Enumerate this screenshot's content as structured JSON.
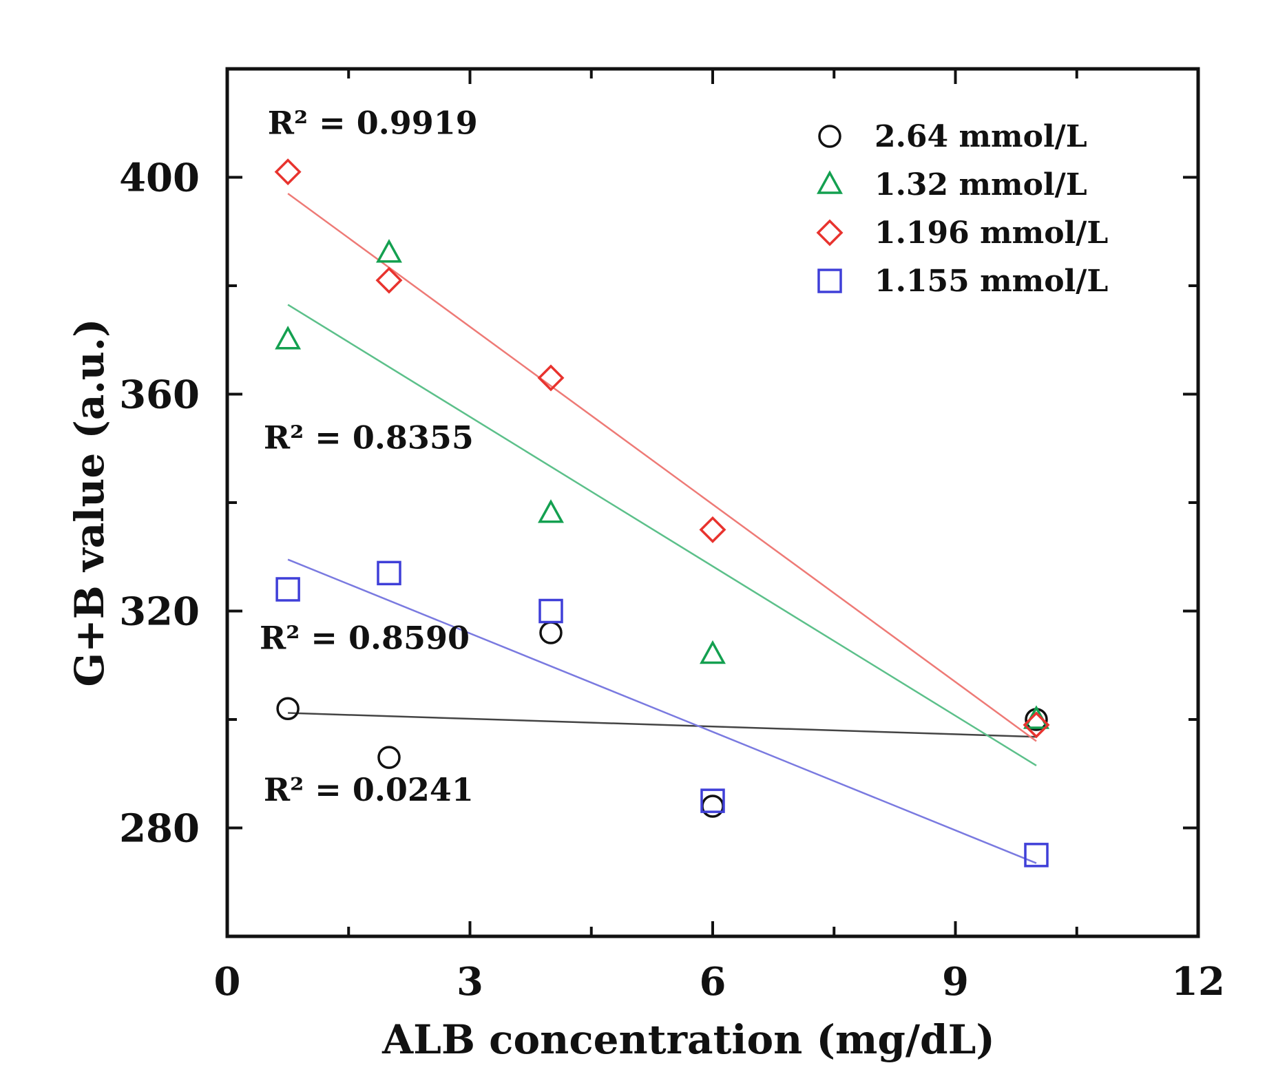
{
  "chart_data": {
    "type": "scatter",
    "title": "",
    "xlabel": "ALB concentration (mg/dL)",
    "ylabel": "G+B value (a.u.)",
    "xlim": [
      0,
      12
    ],
    "ylim": [
      260,
      420
    ],
    "xticks": [
      0,
      3,
      6,
      9,
      12
    ],
    "xtick_labels": [
      "0",
      "3",
      "6",
      "9",
      "12"
    ],
    "yticks": [
      280,
      320,
      360,
      400
    ],
    "ytick_labels": [
      "280",
      "320",
      "360",
      "400"
    ],
    "grid": false,
    "legend_position": "top-right",
    "series": [
      {
        "name": "2.64 mmol/L",
        "marker": "circle",
        "color": "#111111",
        "x": [
          0.75,
          2,
          4,
          6,
          10
        ],
        "y": [
          302,
          293,
          316,
          284,
          300
        ],
        "fit": {
          "x": [
            0.75,
            10
          ],
          "y": [
            301.2,
            296.8
          ]
        },
        "r2": "R² = 0.0241"
      },
      {
        "name": "1.32 mmol/L",
        "marker": "triangle",
        "color": "#14a050",
        "x": [
          0.75,
          2,
          4,
          6,
          10
        ],
        "y": [
          370,
          386,
          338,
          312,
          300
        ],
        "fit": {
          "x": [
            0.75,
            10
          ],
          "y": [
            376.5,
            291.5
          ]
        },
        "r2": "R² = 0.8355"
      },
      {
        "name": "1.196 mmol/L",
        "marker": "diamond",
        "color": "#e8332e",
        "x": [
          0.75,
          2,
          4,
          6,
          10
        ],
        "y": [
          401,
          381,
          363,
          335,
          299
        ],
        "fit": {
          "x": [
            0.75,
            10
          ],
          "y": [
            397,
            296
          ]
        },
        "r2": "R² = 0.9919"
      },
      {
        "name": "1.155 mmol/L",
        "marker": "square",
        "color": "#3f3fd8",
        "x": [
          0.75,
          2,
          4,
          6,
          10
        ],
        "y": [
          324,
          327,
          320,
          285,
          275
        ],
        "fit": {
          "x": [
            0.75,
            10
          ],
          "y": [
            329.5,
            273.5
          ]
        },
        "r2": "R² = 0.8590"
      }
    ],
    "annotations": [
      {
        "text": "R² = 0.9919",
        "x": 0.5,
        "y": 408
      },
      {
        "text": "R² = 0.8355",
        "x": 0.45,
        "y": 350
      },
      {
        "text": "R² = 0.8590",
        "x": 0.4,
        "y": 313
      },
      {
        "text": "R² = 0.0241",
        "x": 0.45,
        "y": 285
      }
    ]
  }
}
